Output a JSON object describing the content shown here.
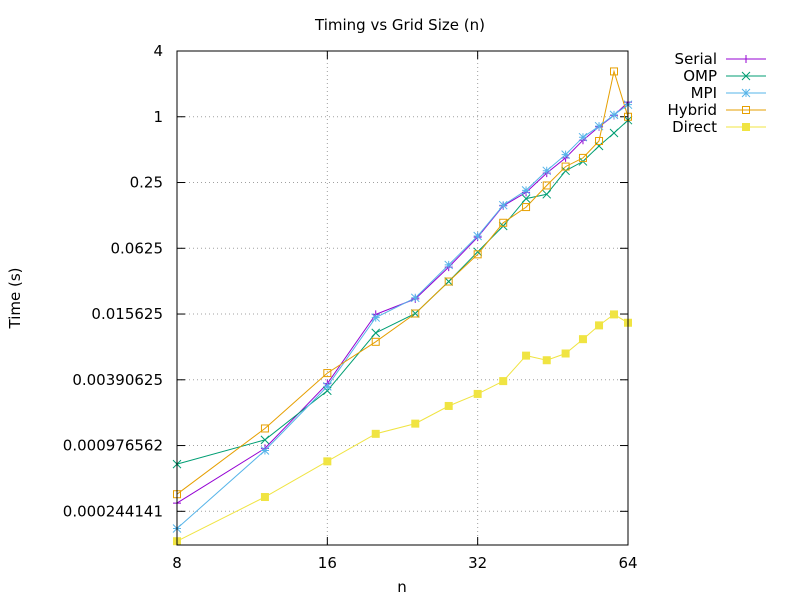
{
  "chart_data": {
    "type": "line",
    "title": "Timing vs Grid Size (n)",
    "xlabel": "n",
    "ylabel": "Time (s)",
    "x_scale": "log2",
    "y_scale": "log2",
    "xlim": [
      8,
      64
    ],
    "ylim": [
      0.00012,
      4
    ],
    "x_ticks": [
      8,
      16,
      32,
      64
    ],
    "x_tick_labels": [
      "8",
      "16",
      "32",
      "64"
    ],
    "y_ticks": [
      0.000244141,
      0.000976562,
      0.00390625,
      0.015625,
      0.0625,
      0.25,
      1,
      4
    ],
    "y_tick_labels": [
      "0.000244141",
      "0.000976562",
      "0.00390625",
      "0.015625",
      "0.0625",
      "0.25",
      "1",
      "4"
    ],
    "grid": true,
    "legend_position": "outside-top-right",
    "series": [
      {
        "name": "Serial",
        "color": "#9400d3",
        "marker": "plus",
        "x": [
          8,
          12,
          16,
          20,
          24,
          28,
          32,
          36,
          40,
          44,
          48,
          52,
          56,
          60,
          64
        ],
        "y": [
          0.00029,
          0.00092,
          0.0036,
          0.0155,
          0.0215,
          0.042,
          0.079,
          0.153,
          0.203,
          0.305,
          0.42,
          0.61,
          0.81,
          1.03,
          1.36
        ]
      },
      {
        "name": "OMP",
        "color": "#009e73",
        "marker": "cross",
        "x": [
          8,
          12,
          16,
          20,
          24,
          28,
          32,
          36,
          40,
          44,
          48,
          52,
          56,
          60,
          64
        ],
        "y": [
          0.00066,
          0.0011,
          0.0031,
          0.0105,
          0.0158,
          0.031,
          0.058,
          0.1,
          0.178,
          0.195,
          0.32,
          0.39,
          0.54,
          0.71,
          0.93
        ]
      },
      {
        "name": "MPI",
        "color": "#56b4e9",
        "marker": "star",
        "x": [
          8,
          12,
          16,
          20,
          24,
          28,
          32,
          36,
          40,
          44,
          48,
          52,
          56,
          60,
          64
        ],
        "y": [
          0.00017,
          0.00088,
          0.0034,
          0.0145,
          0.022,
          0.044,
          0.081,
          0.155,
          0.212,
          0.32,
          0.45,
          0.65,
          0.82,
          1.04,
          1.29
        ]
      },
      {
        "name": "Hybrid",
        "color": "#e69f00",
        "marker": "box",
        "x": [
          8,
          12,
          16,
          20,
          24,
          28,
          32,
          36,
          40,
          44,
          48,
          52,
          56,
          60,
          64
        ],
        "y": [
          0.00035,
          0.0014,
          0.0045,
          0.0087,
          0.0158,
          0.031,
          0.055,
          0.107,
          0.149,
          0.235,
          0.35,
          0.42,
          0.6,
          2.6,
          1.0
        ]
      },
      {
        "name": "Direct",
        "color": "#f0e442",
        "marker": "filled-box",
        "x": [
          8,
          12,
          16,
          20,
          24,
          28,
          32,
          36,
          40,
          44,
          48,
          52,
          56,
          60,
          64
        ],
        "y": [
          0.00013,
          0.00033,
          0.0007,
          0.00125,
          0.00155,
          0.00225,
          0.0029,
          0.0038,
          0.0065,
          0.0059,
          0.0068,
          0.0092,
          0.0123,
          0.0155,
          0.013
        ]
      }
    ]
  }
}
